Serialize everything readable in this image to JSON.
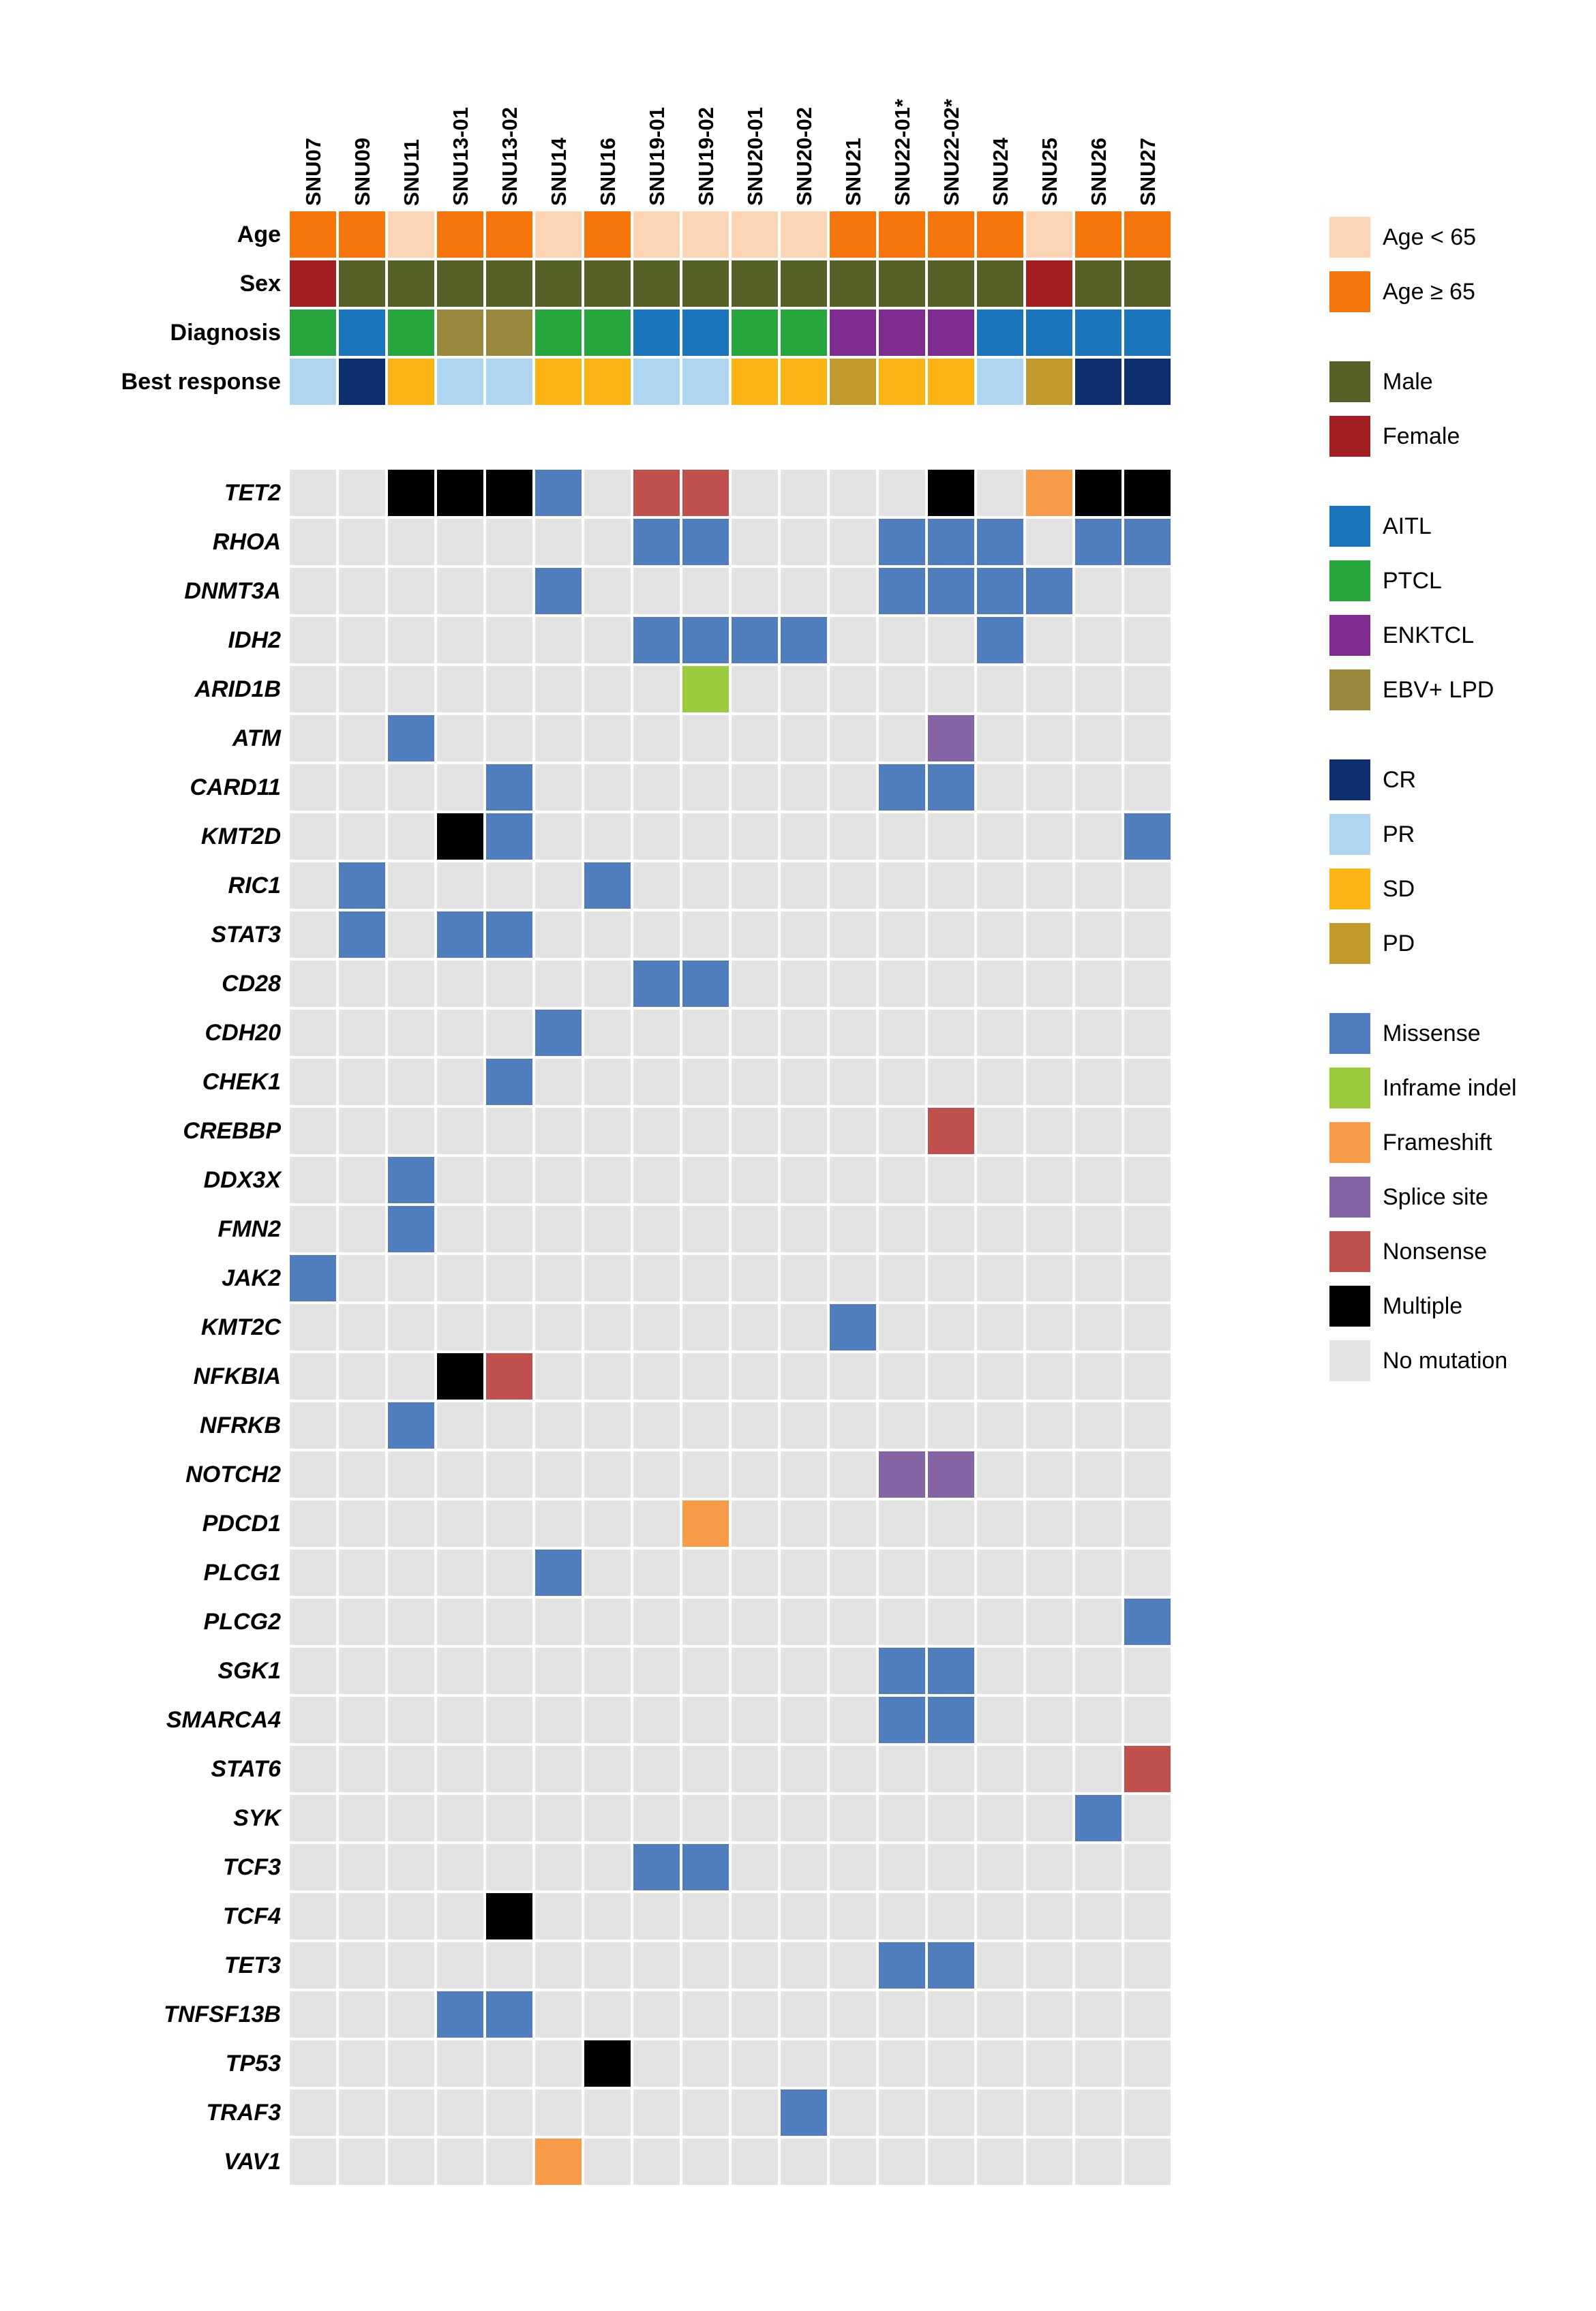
{
  "chart_data": {
    "type": "heatmap",
    "subtype": "oncoprint-mutation-matrix",
    "legend_position": "right",
    "grid": false,
    "samples": [
      "SNU07",
      "SNU09",
      "SNU11",
      "SNU13-01",
      "SNU13-02",
      "SNU14",
      "SNU16",
      "SNU19-01",
      "SNU19-02",
      "SNU20-01",
      "SNU20-02",
      "SNU21",
      "SNU22-01*",
      "SNU22-02*",
      "SNU24",
      "SNU25",
      "SNU26",
      "SNU27"
    ],
    "palette": {
      "lt65": "#FBD5B5",
      "ge65": "#F7760B",
      "M": "#566127",
      "F": "#A21E21",
      "AITL": "#1B75BC",
      "PTCL": "#26A63C",
      "ENKTCL": "#7E2C90",
      "EBVLPD": "#98893F",
      "CR": "#0E3070",
      "PR": "#AFD6F1",
      "SD": "#FCB415",
      "PD": "#C1992C",
      "MIS": "#4F7DBE",
      "IFI": "#9CCA3D",
      "FS": "#F89B49",
      "SS": "#8464A4",
      "NS": "#C0504D",
      "MUL": "#000000",
      "NONE": "#E3E3E3"
    },
    "clinical": [
      {
        "label": "Age",
        "codes": [
          "ge65",
          "ge65",
          "lt65",
          "ge65",
          "ge65",
          "lt65",
          "ge65",
          "lt65",
          "lt65",
          "lt65",
          "lt65",
          "ge65",
          "ge65",
          "ge65",
          "ge65",
          "lt65",
          "ge65",
          "ge65"
        ]
      },
      {
        "label": "Sex",
        "codes": [
          "F",
          "M",
          "M",
          "M",
          "M",
          "M",
          "M",
          "M",
          "M",
          "M",
          "M",
          "M",
          "M",
          "M",
          "M",
          "F",
          "M",
          "M"
        ]
      },
      {
        "label": "Diagnosis",
        "codes": [
          "PTCL",
          "AITL",
          "PTCL",
          "EBVLPD",
          "EBVLPD",
          "PTCL",
          "PTCL",
          "AITL",
          "AITL",
          "PTCL",
          "PTCL",
          "ENKTCL",
          "ENKTCL",
          "ENKTCL",
          "AITL",
          "AITL",
          "AITL",
          "AITL"
        ]
      },
      {
        "label": "Best response",
        "codes": [
          "PR",
          "CR",
          "SD",
          "PR",
          "PR",
          "SD",
          "SD",
          "PR",
          "PR",
          "SD",
          "SD",
          "PD",
          "SD",
          "SD",
          "PR",
          "PD",
          "CR",
          "CR"
        ]
      }
    ],
    "genes": [
      {
        "gene": "TET2",
        "cells": [
          "",
          "",
          "MUL",
          "MUL",
          "MUL",
          "MIS",
          "",
          "NS",
          "NS",
          "",
          "",
          "",
          "",
          "MUL",
          "",
          "FS",
          "MUL",
          "MUL"
        ]
      },
      {
        "gene": "RHOA",
        "cells": [
          "",
          "",
          "",
          "",
          "",
          "",
          "",
          "MIS",
          "MIS",
          "",
          "",
          "",
          "MIS",
          "MIS",
          "MIS",
          "",
          "MIS",
          "MIS"
        ]
      },
      {
        "gene": "DNMT3A",
        "cells": [
          "",
          "",
          "",
          "",
          "",
          "MIS",
          "",
          "",
          "",
          "",
          "",
          "",
          "MIS",
          "MIS",
          "MIS",
          "MIS",
          "",
          ""
        ]
      },
      {
        "gene": "IDH2",
        "cells": [
          "",
          "",
          "",
          "",
          "",
          "",
          "",
          "MIS",
          "MIS",
          "MIS",
          "MIS",
          "",
          "",
          "",
          "MIS",
          "",
          "",
          ""
        ]
      },
      {
        "gene": "ARID1B",
        "cells": [
          "",
          "",
          "",
          "",
          "",
          "",
          "",
          "",
          "IFI",
          "",
          "",
          "",
          "",
          "",
          "",
          "",
          "",
          ""
        ]
      },
      {
        "gene": "ATM",
        "cells": [
          "",
          "",
          "MIS",
          "",
          "",
          "",
          "",
          "",
          "",
          "",
          "",
          "",
          "",
          "SS",
          "",
          "",
          "",
          ""
        ]
      },
      {
        "gene": "CARD11",
        "cells": [
          "",
          "",
          "",
          "",
          "MIS",
          "",
          "",
          "",
          "",
          "",
          "",
          "",
          "MIS",
          "MIS",
          "",
          "",
          "",
          ""
        ]
      },
      {
        "gene": "KMT2D",
        "cells": [
          "",
          "",
          "",
          "MUL",
          "MIS",
          "",
          "",
          "",
          "",
          "",
          "",
          "",
          "",
          "",
          "",
          "",
          "",
          "MIS"
        ]
      },
      {
        "gene": "RIC1",
        "cells": [
          "",
          "MIS",
          "",
          "",
          "",
          "",
          "MIS",
          "",
          "",
          "",
          "",
          "",
          "",
          "",
          "",
          "",
          "",
          ""
        ]
      },
      {
        "gene": "STAT3",
        "cells": [
          "",
          "MIS",
          "",
          "MIS",
          "MIS",
          "",
          "",
          "",
          "",
          "",
          "",
          "",
          "",
          "",
          "",
          "",
          "",
          ""
        ]
      },
      {
        "gene": "CD28",
        "cells": [
          "",
          "",
          "",
          "",
          "",
          "",
          "",
          "MIS",
          "MIS",
          "",
          "",
          "",
          "",
          "",
          "",
          "",
          "",
          ""
        ]
      },
      {
        "gene": "CDH20",
        "cells": [
          "",
          "",
          "",
          "",
          "",
          "MIS",
          "",
          "",
          "",
          "",
          "",
          "",
          "",
          "",
          "",
          "",
          "",
          ""
        ]
      },
      {
        "gene": "CHEK1",
        "cells": [
          "",
          "",
          "",
          "",
          "MIS",
          "",
          "",
          "",
          "",
          "",
          "",
          "",
          "",
          "",
          "",
          "",
          "",
          ""
        ]
      },
      {
        "gene": "CREBBP",
        "cells": [
          "",
          "",
          "",
          "",
          "",
          "",
          "",
          "",
          "",
          "",
          "",
          "",
          "",
          "NS",
          "",
          "",
          "",
          ""
        ]
      },
      {
        "gene": "DDX3X",
        "cells": [
          "",
          "",
          "MIS",
          "",
          "",
          "",
          "",
          "",
          "",
          "",
          "",
          "",
          "",
          "",
          "",
          "",
          "",
          ""
        ]
      },
      {
        "gene": "FMN2",
        "cells": [
          "",
          "",
          "MIS",
          "",
          "",
          "",
          "",
          "",
          "",
          "",
          "",
          "",
          "",
          "",
          "",
          "",
          "",
          ""
        ]
      },
      {
        "gene": "JAK2",
        "cells": [
          "MIS",
          "",
          "",
          "",
          "",
          "",
          "",
          "",
          "",
          "",
          "",
          "",
          "",
          "",
          "",
          "",
          "",
          ""
        ]
      },
      {
        "gene": "KMT2C",
        "cells": [
          "",
          "",
          "",
          "",
          "",
          "",
          "",
          "",
          "",
          "",
          "",
          "MIS",
          "",
          "",
          "",
          "",
          "",
          ""
        ]
      },
      {
        "gene": "NFKBIA",
        "cells": [
          "",
          "",
          "",
          "MUL",
          "NS",
          "",
          "",
          "",
          "",
          "",
          "",
          "",
          "",
          "",
          "",
          "",
          "",
          ""
        ]
      },
      {
        "gene": "NFRKB",
        "cells": [
          "",
          "",
          "MIS",
          "",
          "",
          "",
          "",
          "",
          "",
          "",
          "",
          "",
          "",
          "",
          "",
          "",
          "",
          ""
        ]
      },
      {
        "gene": "NOTCH2",
        "cells": [
          "",
          "",
          "",
          "",
          "",
          "",
          "",
          "",
          "",
          "",
          "",
          "",
          "SS",
          "SS",
          "",
          "",
          "",
          ""
        ]
      },
      {
        "gene": "PDCD1",
        "cells": [
          "",
          "",
          "",
          "",
          "",
          "",
          "",
          "",
          "FS",
          "",
          "",
          "",
          "",
          "",
          "",
          "",
          "",
          ""
        ]
      },
      {
        "gene": "PLCG1",
        "cells": [
          "",
          "",
          "",
          "",
          "",
          "MIS",
          "",
          "",
          "",
          "",
          "",
          "",
          "",
          "",
          "",
          "",
          "",
          ""
        ]
      },
      {
        "gene": "PLCG2",
        "cells": [
          "",
          "",
          "",
          "",
          "",
          "",
          "",
          "",
          "",
          "",
          "",
          "",
          "",
          "",
          "",
          "",
          "",
          "MIS"
        ]
      },
      {
        "gene": "SGK1",
        "cells": [
          "",
          "",
          "",
          "",
          "",
          "",
          "",
          "",
          "",
          "",
          "",
          "",
          "MIS",
          "MIS",
          "",
          "",
          "",
          ""
        ]
      },
      {
        "gene": "SMARCA4",
        "cells": [
          "",
          "",
          "",
          "",
          "",
          "",
          "",
          "",
          "",
          "",
          "",
          "",
          "MIS",
          "MIS",
          "",
          "",
          "",
          ""
        ]
      },
      {
        "gene": "STAT6",
        "cells": [
          "",
          "",
          "",
          "",
          "",
          "",
          "",
          "",
          "",
          "",
          "",
          "",
          "",
          "",
          "",
          "",
          "",
          "NS"
        ]
      },
      {
        "gene": "SYK",
        "cells": [
          "",
          "",
          "",
          "",
          "",
          "",
          "",
          "",
          "",
          "",
          "",
          "",
          "",
          "",
          "",
          "",
          "MIS",
          ""
        ]
      },
      {
        "gene": "TCF3",
        "cells": [
          "",
          "",
          "",
          "",
          "",
          "",
          "",
          "MIS",
          "MIS",
          "",
          "",
          "",
          "",
          "",
          "",
          "",
          "",
          ""
        ]
      },
      {
        "gene": "TCF4",
        "cells": [
          "",
          "",
          "",
          "",
          "MUL",
          "",
          "",
          "",
          "",
          "",
          "",
          "",
          "",
          "",
          "",
          "",
          "",
          ""
        ]
      },
      {
        "gene": "TET3",
        "cells": [
          "",
          "",
          "",
          "",
          "",
          "",
          "",
          "",
          "",
          "",
          "",
          "",
          "MIS",
          "MIS",
          "",
          "",
          "",
          ""
        ]
      },
      {
        "gene": "TNFSF13B",
        "cells": [
          "",
          "",
          "",
          "MIS",
          "MIS",
          "",
          "",
          "",
          "",
          "",
          "",
          "",
          "",
          "",
          "",
          "",
          "",
          ""
        ]
      },
      {
        "gene": "TP53",
        "cells": [
          "",
          "",
          "",
          "",
          "",
          "",
          "MUL",
          "",
          "",
          "",
          "",
          "",
          "",
          "",
          "",
          "",
          "",
          ""
        ]
      },
      {
        "gene": "TRAF3",
        "cells": [
          "",
          "",
          "",
          "",
          "",
          "",
          "",
          "",
          "",
          "",
          "MIS",
          "",
          "",
          "",
          "",
          "",
          "",
          ""
        ]
      },
      {
        "gene": "VAV1",
        "cells": [
          "",
          "",
          "",
          "",
          "",
          "FS",
          "",
          "",
          "",
          "",
          "",
          "",
          "",
          "",
          "",
          "",
          "",
          ""
        ]
      }
    ],
    "legend": {
      "groups": [
        {
          "name": "age",
          "items": [
            {
              "code": "lt65",
              "label": "Age < 65"
            },
            {
              "code": "ge65",
              "label": "Age ≥ 65"
            }
          ]
        },
        {
          "name": "sex",
          "items": [
            {
              "code": "M",
              "label": "Male"
            },
            {
              "code": "F",
              "label": "Female"
            }
          ]
        },
        {
          "name": "diagnosis",
          "items": [
            {
              "code": "AITL",
              "label": "AITL"
            },
            {
              "code": "PTCL",
              "label": "PTCL"
            },
            {
              "code": "ENKTCL",
              "label": "ENKTCL"
            },
            {
              "code": "EBVLPD",
              "label": "EBV+ LPD"
            }
          ]
        },
        {
          "name": "best-response",
          "items": [
            {
              "code": "CR",
              "label": "CR"
            },
            {
              "code": "PR",
              "label": "PR"
            },
            {
              "code": "SD",
              "label": "SD"
            },
            {
              "code": "PD",
              "label": "PD"
            }
          ]
        },
        {
          "name": "mutation-type",
          "items": [
            {
              "code": "MIS",
              "label": "Missense"
            },
            {
              "code": "IFI",
              "label": "Inframe indel"
            },
            {
              "code": "FS",
              "label": "Frameshift"
            },
            {
              "code": "SS",
              "label": "Splice site"
            },
            {
              "code": "NS",
              "label": "Nonsense"
            },
            {
              "code": "MUL",
              "label": "Multiple"
            },
            {
              "code": "NONE",
              "label": "No mutation"
            }
          ]
        }
      ]
    }
  }
}
